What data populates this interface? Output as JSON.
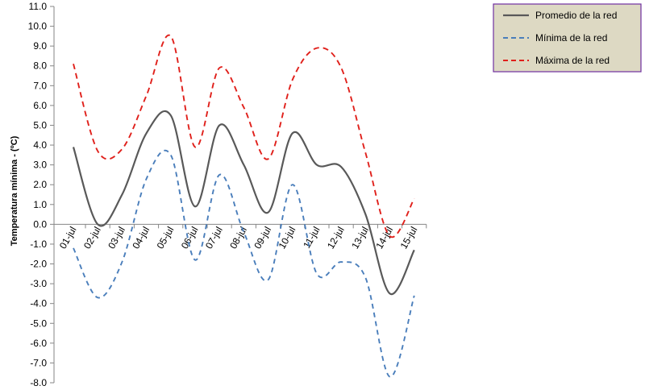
{
  "chart_data": {
    "type": "line",
    "title": "",
    "xlabel": "",
    "ylabel": "Temperatura mínima - (ºC)",
    "ylim": [
      -8.0,
      11.0
    ],
    "ytick_step": 1.0,
    "yticks": [
      "11.0",
      "10.0",
      "9.0",
      "8.0",
      "7.0",
      "6.0",
      "5.0",
      "4.0",
      "3.0",
      "2.0",
      "1.0",
      "0.0",
      "-1.0",
      "-2.0",
      "-3.0",
      "-4.0",
      "-5.0",
      "-6.0",
      "-7.0",
      "-8.0"
    ],
    "categories": [
      "01-jul",
      "02-jul",
      "03-jul",
      "04-jul",
      "05-jul",
      "06-jul",
      "07-jul",
      "08-jul",
      "09-jul",
      "10-jul",
      "11-jul",
      "12-jul",
      "13-jul",
      "14-jul",
      "15-jul"
    ],
    "grid": false,
    "legend_position": "top-right",
    "series": [
      {
        "name": "Promedio de la red",
        "color": "#595959",
        "dash": "solid",
        "values": [
          3.9,
          0.0,
          1.5,
          4.6,
          5.5,
          0.9,
          5.0,
          3.0,
          0.6,
          4.6,
          3.0,
          2.9,
          0.5,
          -3.5,
          -1.3
        ]
      },
      {
        "name": "Mínima de la red",
        "color": "#4a7ebb",
        "dash": "dashed",
        "values": [
          -1.2,
          -3.7,
          -1.9,
          2.3,
          3.5,
          -1.8,
          2.5,
          -0.4,
          -2.8,
          2.0,
          -2.5,
          -1.9,
          -2.7,
          -7.7,
          -3.6
        ]
      },
      {
        "name": "Máxima de la red",
        "color": "#e0201b",
        "dash": "dashed",
        "values": [
          8.1,
          3.7,
          3.8,
          6.5,
          9.5,
          3.9,
          7.9,
          5.9,
          3.3,
          7.3,
          8.9,
          7.9,
          3.6,
          -0.6,
          1.3
        ]
      }
    ]
  },
  "legend": {
    "items": [
      {
        "label": "Promedio de la red"
      },
      {
        "label": "Mínima de la red"
      },
      {
        "label": "Máxima de la red"
      }
    ],
    "background": "#ddd9c3",
    "border": "#7030a0"
  }
}
